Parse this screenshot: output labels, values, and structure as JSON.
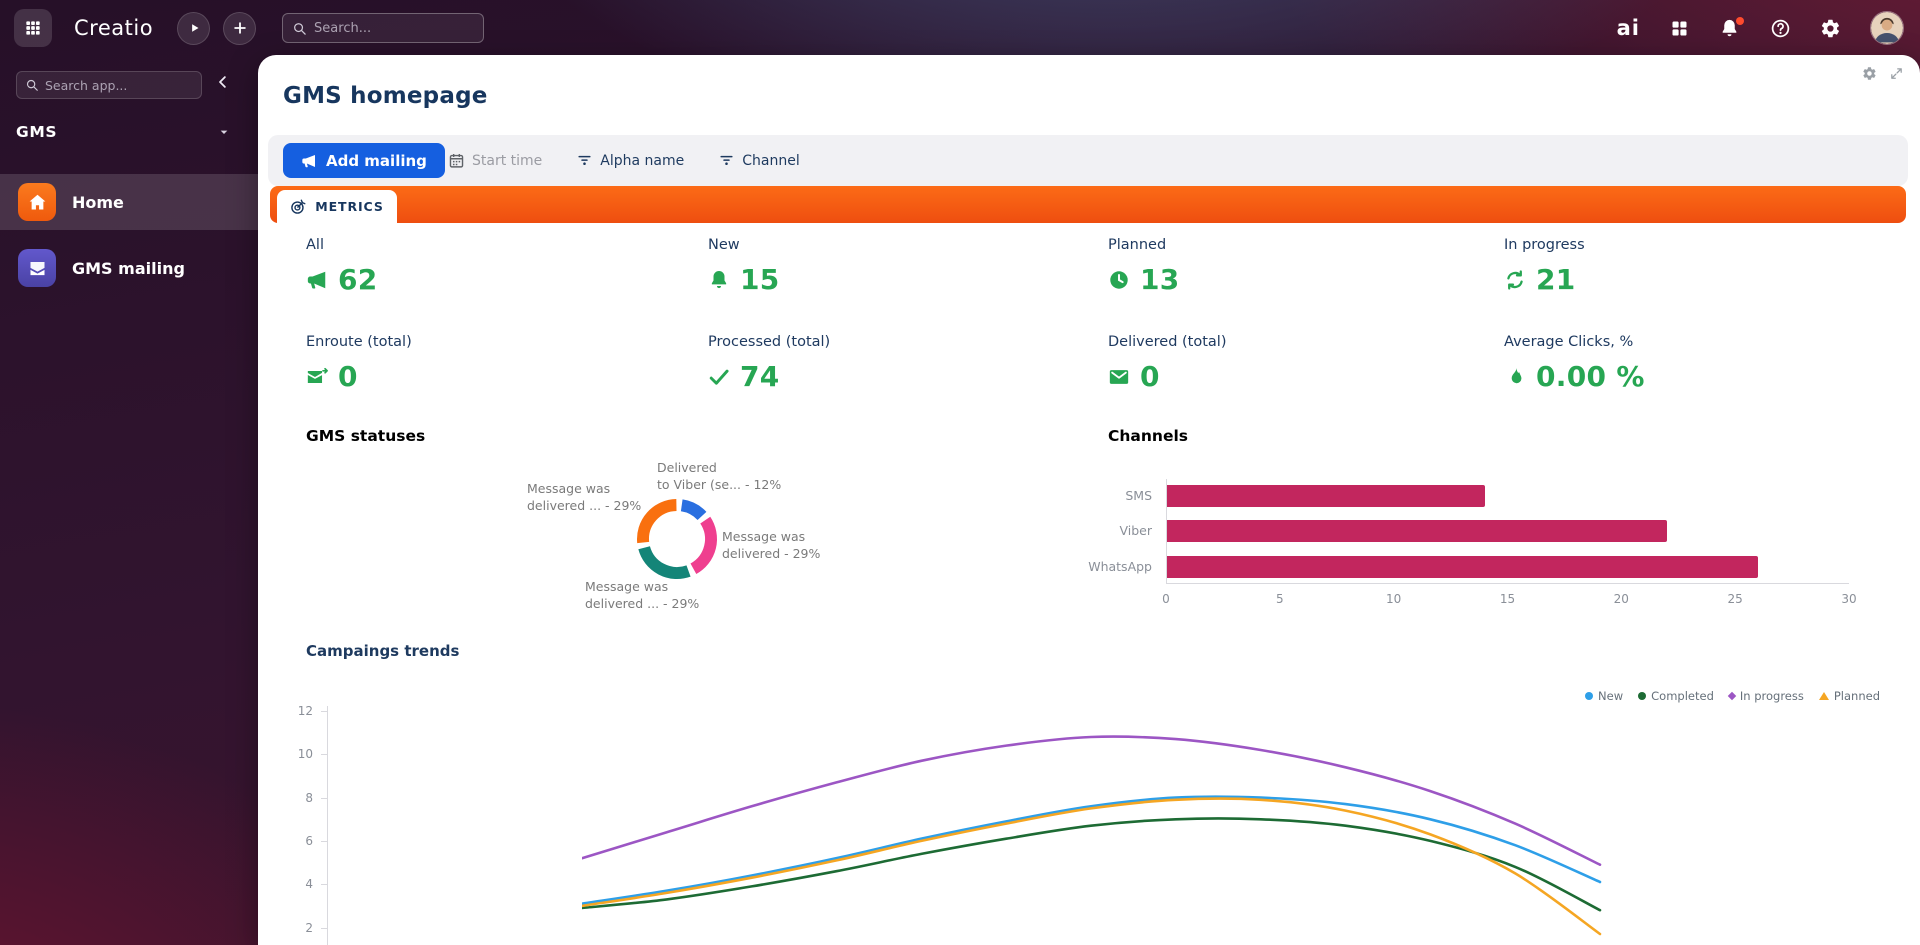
{
  "colors": {
    "accent_orange": "#f55a13",
    "metric_green": "#27a653",
    "primary_blue": "#155fe0",
    "navy_text": "#1e3a5f",
    "statuses_title_red": "#e0344e",
    "channels_title_green": "#27a653",
    "bar_crimson": "#c2265e",
    "sidebar_active_orange": "#f4610f",
    "sidebar_mailing_indigo": "#5a51c2",
    "notification_dot": "#ff4b2e"
  },
  "topbar": {
    "logo": "Creatio",
    "search_placeholder": "Search...",
    "ai_label": "ai"
  },
  "sidebar": {
    "search_placeholder": "Search app...",
    "workspace": "GMS",
    "items": [
      {
        "label": "Home",
        "icon": "home-icon",
        "active": true
      },
      {
        "label": "GMS mailing",
        "icon": "mailing-icon",
        "active": false
      }
    ]
  },
  "page": {
    "title": "GMS homepage",
    "tab": "METRICS",
    "toolbar": {
      "add_button": "Add mailing",
      "filters": [
        {
          "label": "Start time",
          "icon": "calendar-icon"
        },
        {
          "label": "Alpha name",
          "icon": "filter-icon"
        },
        {
          "label": "Channel",
          "icon": "filter-icon"
        }
      ]
    }
  },
  "metrics": [
    {
      "label": "All",
      "value": "62",
      "icon": "megaphone-icon"
    },
    {
      "label": "New",
      "value": "15",
      "icon": "bell-icon"
    },
    {
      "label": "Planned",
      "value": "13",
      "icon": "clock-icon"
    },
    {
      "label": "In progress",
      "value": "21",
      "icon": "refresh-icon"
    },
    {
      "label": "Enroute (total)",
      "value": "0",
      "icon": "mail-send-icon"
    },
    {
      "label": "Processed (total)",
      "value": "74",
      "icon": "check-icon"
    },
    {
      "label": "Delivered (total)",
      "value": "0",
      "icon": "mail-check-icon"
    },
    {
      "label": "Average Clicks, %",
      "value": "0.00 %",
      "icon": "flame-icon"
    }
  ],
  "chart_data": [
    {
      "id": "gms_statuses",
      "type": "pie",
      "donut": true,
      "title": "GMS statuses",
      "title_color": "#e0344e",
      "slices": [
        {
          "label_lines": [
            "Delivered",
            "to Viber (se... - 12%"
          ],
          "value": 12,
          "color": "#2a6fe0"
        },
        {
          "label_lines": [
            "Message was",
            "delivered - 29%"
          ],
          "value": 29,
          "color": "#ef3f8f"
        },
        {
          "label_lines": [
            "Message was",
            "delivered ... - 29%"
          ],
          "value": 29,
          "color": "#148578"
        },
        {
          "label_lines": [
            "Message was",
            "delivered ... - 29%"
          ],
          "value": 29,
          "color": "#f9700f"
        }
      ]
    },
    {
      "id": "channels",
      "type": "bar",
      "orientation": "horizontal",
      "title": "Channels",
      "title_color": "#27a653",
      "categories": [
        "SMS",
        "Viber",
        "WhatsApp"
      ],
      "values": [
        14,
        22,
        26
      ],
      "bar_color": "#c2265e",
      "xlim": [
        0,
        30
      ],
      "xticks": [
        0,
        5,
        10,
        15,
        20,
        25,
        30
      ],
      "grid": false
    },
    {
      "id": "campaigns_trends",
      "type": "line",
      "title": "Campaings trends",
      "ylim": [
        1,
        12.5
      ],
      "yticks": [
        2,
        4,
        6,
        8,
        10,
        12
      ],
      "legend_position": "top-right",
      "x_samples": [
        0,
        1,
        2,
        3,
        4,
        5,
        6,
        7,
        8,
        9,
        10,
        11,
        12
      ],
      "series": [
        {
          "name": "New",
          "marker": "circle",
          "color": "#2e9fe8",
          "values": [
            3.1,
            3.7,
            4.4,
            5.2,
            6.1,
            6.9,
            7.6,
            8.0,
            8.0,
            7.7,
            7.0,
            5.8,
            4.1
          ]
        },
        {
          "name": "Completed",
          "marker": "circle",
          "color": "#1d6b34",
          "values": [
            2.9,
            3.3,
            3.9,
            4.6,
            5.4,
            6.1,
            6.7,
            7.0,
            7.0,
            6.7,
            6.0,
            4.8,
            2.8
          ]
        },
        {
          "name": "In progress",
          "marker": "diamond",
          "color": "#9c56c4",
          "values": [
            5.2,
            6.4,
            7.6,
            8.7,
            9.7,
            10.4,
            10.8,
            10.7,
            10.2,
            9.4,
            8.3,
            6.8,
            4.9
          ]
        },
        {
          "name": "Planned",
          "marker": "triangle",
          "color": "#f5a623",
          "values": [
            3.0,
            3.6,
            4.3,
            5.1,
            6.0,
            6.8,
            7.5,
            7.9,
            7.9,
            7.4,
            6.3,
            4.5,
            1.7
          ]
        }
      ]
    }
  ]
}
